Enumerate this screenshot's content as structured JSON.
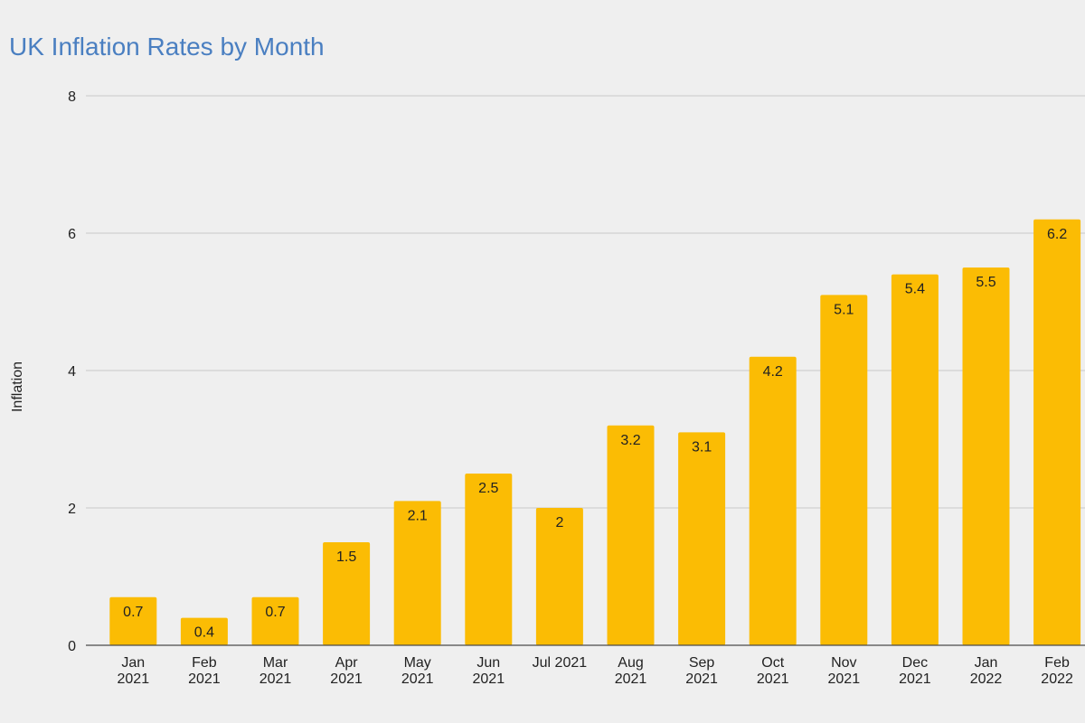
{
  "colors": {
    "background": "#efefef",
    "title": "#4a7fc1",
    "bar": "#fbbc04",
    "grid": "#c9c9c9",
    "text": "#222222"
  },
  "chart_data": {
    "type": "bar",
    "title": "UK Inflation Rates by Month",
    "xlabel": "",
    "ylabel": "Inflation",
    "ylim": [
      0,
      8
    ],
    "yticks": [
      0,
      2,
      4,
      6,
      8
    ],
    "grid": true,
    "legend": "none",
    "categories": [
      "Jan 2021",
      "Feb 2021",
      "Mar 2021",
      "Apr 2021",
      "May 2021",
      "Jun 2021",
      "Jul 2021",
      "Aug 2021",
      "Sep 2021",
      "Oct 2021",
      "Nov 2021",
      "Dec 2021",
      "Jan 2022",
      "Feb 2022"
    ],
    "category_labels": [
      [
        "Jan",
        "2021"
      ],
      [
        "Feb",
        "2021"
      ],
      [
        "Mar",
        "2021"
      ],
      [
        "Apr",
        "2021"
      ],
      [
        "May",
        "2021"
      ],
      [
        "Jun",
        "2021"
      ],
      [
        "Jul 2021"
      ],
      [
        "Aug",
        "2021"
      ],
      [
        "Sep",
        "2021"
      ],
      [
        "Oct",
        "2021"
      ],
      [
        "Nov",
        "2021"
      ],
      [
        "Dec",
        "2021"
      ],
      [
        "Jan",
        "2022"
      ],
      [
        "Feb",
        "2022"
      ]
    ],
    "values": [
      0.7,
      0.4,
      0.7,
      1.5,
      2.1,
      2.5,
      2,
      3.2,
      3.1,
      4.2,
      5.1,
      5.4,
      5.5,
      6.2
    ],
    "value_labels": [
      "0.7",
      "0.4",
      "0.7",
      "1.5",
      "2.1",
      "2.5",
      "2",
      "3.2",
      "3.1",
      "4.2",
      "5.1",
      "5.4",
      "5.5",
      "6.2"
    ]
  }
}
